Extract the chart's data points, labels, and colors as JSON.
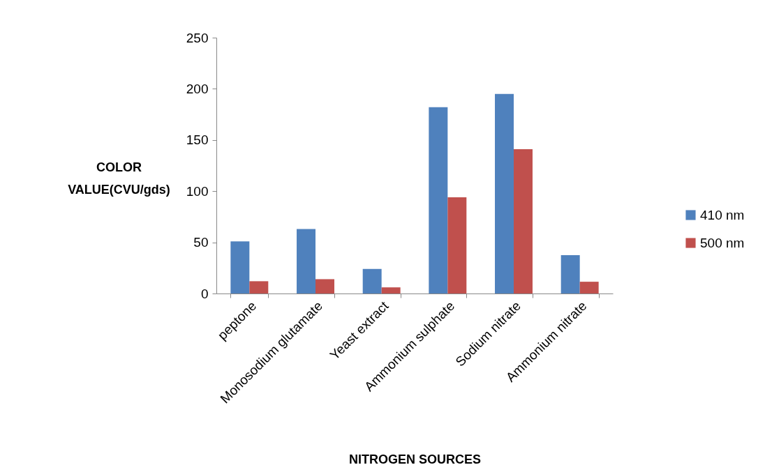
{
  "chart_data": {
    "type": "bar",
    "xlabel": "NITROGEN SOURCES",
    "ylabel": "COLOR VALUE(CVU/gds)",
    "categories": [
      "peptone",
      "Monosodium glutamate",
      "Yeast extract",
      "Ammonium sulphate",
      "Sodium nitrate",
      "Ammonium nitrate"
    ],
    "series": [
      {
        "name": "410 nm",
        "color": "#4f81bd",
        "values": [
          51,
          63,
          24,
          182,
          195,
          37.5
        ]
      },
      {
        "name": "500 nm",
        "color": "#c0504d",
        "values": [
          12,
          14,
          6,
          94,
          141,
          11.5
        ]
      }
    ],
    "ylim": [
      0,
      250
    ],
    "yticks": [
      0,
      50,
      100,
      150,
      200,
      250
    ],
    "grid": false,
    "legend": "right"
  }
}
